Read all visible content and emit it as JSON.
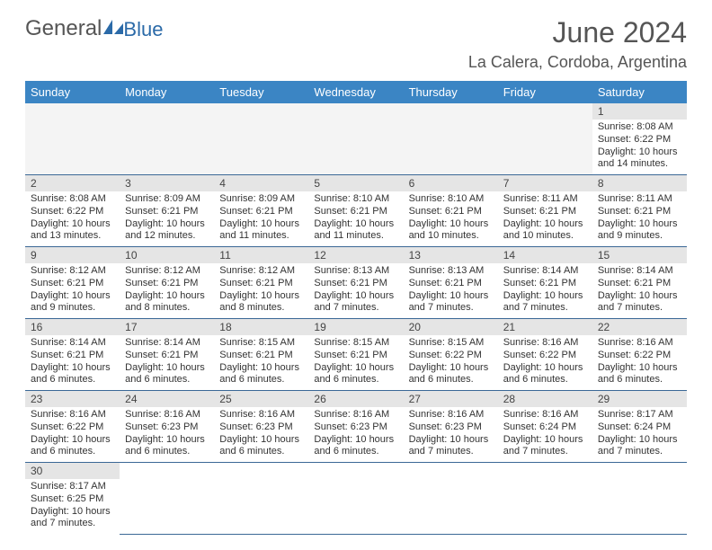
{
  "logo": {
    "main": "General",
    "sub": "Blue"
  },
  "title": "June 2024",
  "location": "La Calera, Cordoba, Argentina",
  "colors": {
    "header_bg": "#3b85c4",
    "header_fg": "#ffffff",
    "daynum_bg": "#e5e5e5",
    "rule": "#3b6896",
    "logo_sub": "#2b6aa8"
  },
  "dow": [
    "Sunday",
    "Monday",
    "Tuesday",
    "Wednesday",
    "Thursday",
    "Friday",
    "Saturday"
  ],
  "weeks": [
    [
      null,
      null,
      null,
      null,
      null,
      null,
      {
        "n": "1",
        "sr": "8:08 AM",
        "ss": "6:22 PM",
        "dl": "10 hours and 14 minutes."
      }
    ],
    [
      {
        "n": "2",
        "sr": "8:08 AM",
        "ss": "6:22 PM",
        "dl": "10 hours and 13 minutes."
      },
      {
        "n": "3",
        "sr": "8:09 AM",
        "ss": "6:21 PM",
        "dl": "10 hours and 12 minutes."
      },
      {
        "n": "4",
        "sr": "8:09 AM",
        "ss": "6:21 PM",
        "dl": "10 hours and 11 minutes."
      },
      {
        "n": "5",
        "sr": "8:10 AM",
        "ss": "6:21 PM",
        "dl": "10 hours and 11 minutes."
      },
      {
        "n": "6",
        "sr": "8:10 AM",
        "ss": "6:21 PM",
        "dl": "10 hours and 10 minutes."
      },
      {
        "n": "7",
        "sr": "8:11 AM",
        "ss": "6:21 PM",
        "dl": "10 hours and 10 minutes."
      },
      {
        "n": "8",
        "sr": "8:11 AM",
        "ss": "6:21 PM",
        "dl": "10 hours and 9 minutes."
      }
    ],
    [
      {
        "n": "9",
        "sr": "8:12 AM",
        "ss": "6:21 PM",
        "dl": "10 hours and 9 minutes."
      },
      {
        "n": "10",
        "sr": "8:12 AM",
        "ss": "6:21 PM",
        "dl": "10 hours and 8 minutes."
      },
      {
        "n": "11",
        "sr": "8:12 AM",
        "ss": "6:21 PM",
        "dl": "10 hours and 8 minutes."
      },
      {
        "n": "12",
        "sr": "8:13 AM",
        "ss": "6:21 PM",
        "dl": "10 hours and 7 minutes."
      },
      {
        "n": "13",
        "sr": "8:13 AM",
        "ss": "6:21 PM",
        "dl": "10 hours and 7 minutes."
      },
      {
        "n": "14",
        "sr": "8:14 AM",
        "ss": "6:21 PM",
        "dl": "10 hours and 7 minutes."
      },
      {
        "n": "15",
        "sr": "8:14 AM",
        "ss": "6:21 PM",
        "dl": "10 hours and 7 minutes."
      }
    ],
    [
      {
        "n": "16",
        "sr": "8:14 AM",
        "ss": "6:21 PM",
        "dl": "10 hours and 6 minutes."
      },
      {
        "n": "17",
        "sr": "8:14 AM",
        "ss": "6:21 PM",
        "dl": "10 hours and 6 minutes."
      },
      {
        "n": "18",
        "sr": "8:15 AM",
        "ss": "6:21 PM",
        "dl": "10 hours and 6 minutes."
      },
      {
        "n": "19",
        "sr": "8:15 AM",
        "ss": "6:21 PM",
        "dl": "10 hours and 6 minutes."
      },
      {
        "n": "20",
        "sr": "8:15 AM",
        "ss": "6:22 PM",
        "dl": "10 hours and 6 minutes."
      },
      {
        "n": "21",
        "sr": "8:16 AM",
        "ss": "6:22 PM",
        "dl": "10 hours and 6 minutes."
      },
      {
        "n": "22",
        "sr": "8:16 AM",
        "ss": "6:22 PM",
        "dl": "10 hours and 6 minutes."
      }
    ],
    [
      {
        "n": "23",
        "sr": "8:16 AM",
        "ss": "6:22 PM",
        "dl": "10 hours and 6 minutes."
      },
      {
        "n": "24",
        "sr": "8:16 AM",
        "ss": "6:23 PM",
        "dl": "10 hours and 6 minutes."
      },
      {
        "n": "25",
        "sr": "8:16 AM",
        "ss": "6:23 PM",
        "dl": "10 hours and 6 minutes."
      },
      {
        "n": "26",
        "sr": "8:16 AM",
        "ss": "6:23 PM",
        "dl": "10 hours and 6 minutes."
      },
      {
        "n": "27",
        "sr": "8:16 AM",
        "ss": "6:23 PM",
        "dl": "10 hours and 7 minutes."
      },
      {
        "n": "28",
        "sr": "8:16 AM",
        "ss": "6:24 PM",
        "dl": "10 hours and 7 minutes."
      },
      {
        "n": "29",
        "sr": "8:17 AM",
        "ss": "6:24 PM",
        "dl": "10 hours and 7 minutes."
      }
    ],
    [
      {
        "n": "30",
        "sr": "8:17 AM",
        "ss": "6:25 PM",
        "dl": "10 hours and 7 minutes."
      },
      null,
      null,
      null,
      null,
      null,
      null
    ]
  ],
  "labels": {
    "sunrise": "Sunrise:",
    "sunset": "Sunset:",
    "daylight": "Daylight:"
  }
}
